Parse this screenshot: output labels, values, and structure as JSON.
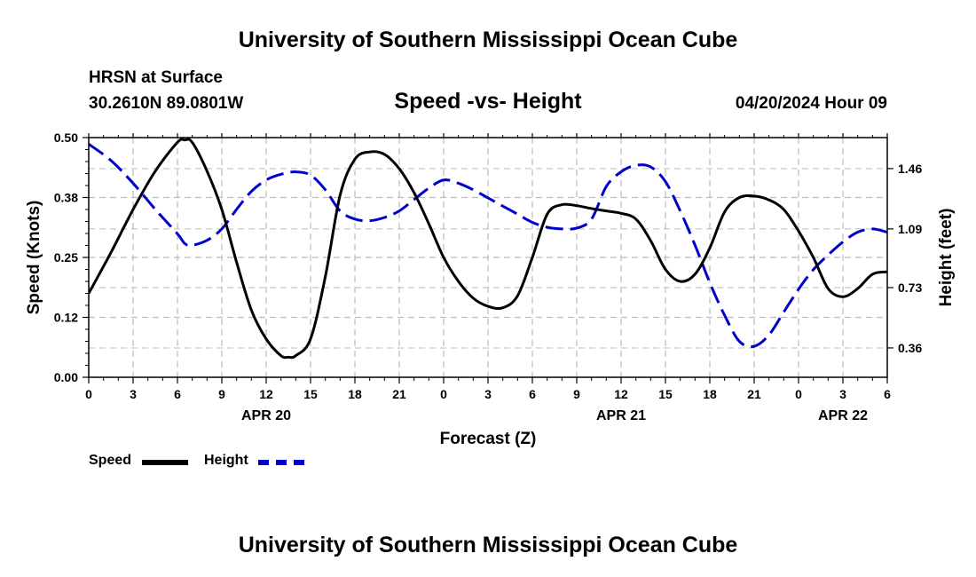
{
  "header": {
    "main_title": "University of Southern Mississippi Ocean Cube",
    "station": "HRSN at Surface",
    "coordinates": "30.2610N  89.0801W",
    "datetime": "04/20/2024 Hour 09",
    "footer_title": "University of Southern Mississippi Ocean Cube"
  },
  "chart_data": {
    "type": "line",
    "title": "Speed -vs- Height",
    "xlabel": "Forecast (Z)",
    "ylabel": "Speed (Knots)",
    "y2label": "Height (feet)",
    "x_range_hours": [
      0,
      54
    ],
    "x_tick_step_hours": 3,
    "x_tick_labels": [
      "0",
      "3",
      "6",
      "9",
      "12",
      "15",
      "18",
      "21",
      "0",
      "3",
      "6",
      "9",
      "12",
      "15",
      "18",
      "21",
      "0",
      "3",
      "6"
    ],
    "date_labels": [
      {
        "label": "APR 20",
        "at_hour": 12
      },
      {
        "label": "APR 21",
        "at_hour": 36
      },
      {
        "label": "APR 22",
        "at_hour": 51
      }
    ],
    "ylim": [
      0,
      0.5
    ],
    "y_tick_values": [
      0,
      0.125,
      0.25,
      0.375,
      0.5
    ],
    "y_tick_labels": [
      "0.00",
      "0.12",
      "0.25",
      "0.38",
      "0.50"
    ],
    "y2lim": [
      0.18,
      1.65
    ],
    "y2_tick_values": [
      0.36,
      0.73,
      1.09,
      1.46
    ],
    "y2_tick_labels": [
      "0.36",
      "0.73",
      "1.09",
      "1.46"
    ],
    "grid": true,
    "series": [
      {
        "name": "Speed",
        "axis": "left",
        "color": "#000000",
        "dash": "solid",
        "x": [
          0,
          1.5,
          3,
          4.5,
          6,
          6.5,
          7,
          8,
          9,
          10,
          11,
          12,
          13,
          13.5,
          14,
          15,
          16,
          17,
          18,
          19,
          20,
          21,
          22,
          23,
          24,
          25,
          26,
          27,
          28,
          29,
          30,
          31,
          32,
          33,
          34,
          35,
          36,
          37,
          38,
          39,
          40,
          41,
          42,
          43,
          44,
          45,
          46,
          47,
          48,
          49,
          50,
          51,
          52,
          53,
          54
        ],
        "values": [
          0.175,
          0.26,
          0.35,
          0.43,
          0.49,
          0.495,
          0.49,
          0.43,
          0.35,
          0.24,
          0.14,
          0.08,
          0.045,
          0.042,
          0.045,
          0.08,
          0.21,
          0.38,
          0.455,
          0.47,
          0.465,
          0.435,
          0.385,
          0.32,
          0.25,
          0.2,
          0.165,
          0.148,
          0.145,
          0.17,
          0.25,
          0.34,
          0.36,
          0.358,
          0.352,
          0.347,
          0.342,
          0.33,
          0.285,
          0.225,
          0.2,
          0.215,
          0.27,
          0.345,
          0.375,
          0.378,
          0.37,
          0.35,
          0.305,
          0.25,
          0.185,
          0.168,
          0.185,
          0.215,
          0.22
        ]
      },
      {
        "name": "Height",
        "axis": "right",
        "color": "#0000cc",
        "dash": "dashed",
        "x": [
          0,
          1.5,
          3,
          4.5,
          6,
          6.5,
          7,
          8,
          9,
          10,
          11,
          12,
          13,
          14,
          15,
          16,
          17,
          18,
          19,
          20,
          21,
          22,
          23,
          24,
          25,
          26,
          27,
          28,
          29,
          30,
          31,
          32,
          33,
          34,
          35,
          36,
          37,
          38,
          39,
          40,
          41,
          42,
          43,
          44,
          45,
          46,
          47,
          48,
          49,
          50,
          51,
          52,
          53,
          54
        ],
        "values": [
          1.61,
          1.51,
          1.37,
          1.21,
          1.06,
          1.0,
          0.99,
          1.02,
          1.09,
          1.21,
          1.32,
          1.39,
          1.425,
          1.44,
          1.42,
          1.33,
          1.2,
          1.15,
          1.14,
          1.16,
          1.2,
          1.27,
          1.34,
          1.39,
          1.37,
          1.33,
          1.28,
          1.23,
          1.18,
          1.13,
          1.1,
          1.09,
          1.095,
          1.15,
          1.35,
          1.44,
          1.48,
          1.47,
          1.38,
          1.2,
          0.99,
          0.76,
          0.56,
          0.4,
          0.37,
          0.44,
          0.58,
          0.72,
          0.84,
          0.93,
          1.01,
          1.07,
          1.09,
          1.07
        ]
      }
    ]
  },
  "legend": {
    "speed_label": "Speed",
    "height_label": "Height"
  },
  "colors": {
    "speed": "#000000",
    "height": "#0000cc",
    "grid": "#bbbbbb"
  }
}
